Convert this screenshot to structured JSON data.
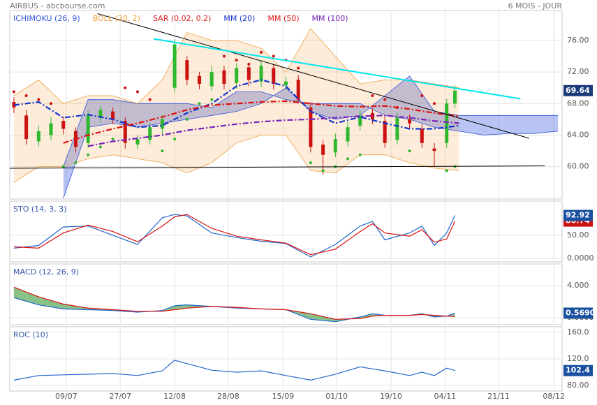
{
  "chart_data": [
    {
      "type": "candlestick",
      "title": "AIRBUS - abcbourse.com",
      "subtitle": "6 MOIS - JOUR",
      "x": [
        0,
        3,
        6,
        9,
        12,
        15,
        18,
        21,
        24,
        27,
        30,
        33,
        36,
        39,
        42,
        45,
        48,
        51,
        54,
        57,
        60,
        63,
        66,
        69,
        72,
        75,
        78,
        81,
        84,
        87,
        90,
        93,
        96,
        99,
        102,
        105,
        107
      ],
      "open": [
        68.2,
        66.5,
        63.2,
        64.0,
        65.8,
        64.5,
        63.0,
        66.2,
        67.0,
        65.8,
        62.8,
        63.4,
        64.8,
        70.0,
        73.5,
        71.5,
        70.2,
        72.2,
        70.6,
        72.6,
        70.8,
        72.5,
        70.3,
        71.0,
        67.5,
        62.8,
        61.8,
        63.2,
        65.2,
        66.8,
        65.8,
        63.4,
        66.0,
        64.8,
        62.3,
        63.0,
        68.0
      ],
      "high": [
        68.8,
        67.2,
        65.2,
        66.3,
        66.3,
        65.0,
        67.1,
        67.8,
        67.5,
        66.3,
        64.0,
        65.6,
        66.6,
        76.2,
        74.0,
        72.0,
        72.8,
        72.8,
        73.1,
        73.1,
        73.5,
        73.0,
        71.4,
        71.6,
        68.2,
        63.4,
        64.2,
        65.7,
        67.1,
        67.4,
        66.4,
        66.8,
        66.6,
        65.4,
        63.0,
        68.6,
        70.3
      ],
      "low": [
        66.8,
        62.8,
        62.6,
        63.4,
        64.1,
        61.8,
        62.4,
        65.6,
        65.4,
        62.3,
        62.2,
        62.8,
        64.1,
        69.4,
        70.3,
        69.8,
        69.6,
        69.8,
        69.9,
        70.2,
        70.1,
        69.8,
        69.7,
        68.0,
        61.8,
        59.0,
        61.2,
        62.6,
        64.6,
        65.4,
        62.4,
        62.8,
        64.9,
        62.4,
        60.0,
        62.4,
        67.4
      ],
      "close": [
        67.5,
        63.5,
        64.5,
        65.5,
        64.8,
        62.5,
        66.5,
        67.2,
        66.0,
        63.0,
        63.5,
        65.0,
        66.0,
        75.5,
        71.0,
        70.5,
        72.0,
        70.5,
        72.5,
        71.0,
        72.8,
        70.5,
        70.8,
        68.5,
        62.5,
        61.5,
        63.5,
        65.0,
        66.5,
        66.0,
        63.0,
        66.2,
        65.5,
        63.0,
        62.0,
        68.0,
        69.64
      ],
      "up_color": "#2eb82e",
      "down_color": "#cc1111",
      "last_label": "69.64",
      "xlim": [
        -1,
        133
      ],
      "ylim": [
        55.9,
        79.8
      ],
      "yticks": [
        {
          "value": 60,
          "label": "60.00"
        },
        {
          "value": 64,
          "label": "64.00"
        },
        {
          "value": 68,
          "label": "68.00"
        },
        {
          "value": 72,
          "label": "72.00"
        },
        {
          "value": 76,
          "label": "76.00"
        }
      ],
      "grid": true,
      "overlays": [
        {
          "name": "ICHIMOKU (26, 9)",
          "color": "#3355dd",
          "x": [
            0,
            6,
            12,
            18,
            24,
            30,
            36,
            42,
            48,
            54,
            60,
            66,
            72,
            78,
            84,
            90,
            96,
            102,
            108,
            114,
            120,
            126,
            132
          ],
          "span_a": [
            null,
            null,
            56,
            65,
            65.5,
            65,
            65.5,
            66,
            66.5,
            67,
            68,
            70,
            67,
            66,
            66.5,
            69,
            71.5,
            67,
            66.5,
            66.5,
            66.5,
            66.5,
            66.5
          ],
          "span_b": [
            null,
            null,
            60,
            68.5,
            68.5,
            68,
            68,
            68,
            67.5,
            69.5,
            69.5,
            68.5,
            68,
            68,
            68,
            66.5,
            66,
            65,
            64.5,
            64,
            64.2,
            64.2,
            64.5
          ]
        },
        {
          "name": "BOLL (20, 2)",
          "color": "#f0a040",
          "x": [
            0,
            6,
            12,
            18,
            24,
            30,
            36,
            42,
            48,
            54,
            60,
            66,
            72,
            78,
            84,
            90,
            96,
            102,
            108
          ],
          "upper": [
            69,
            71,
            68,
            69,
            69,
            68,
            71,
            77,
            76,
            76,
            75,
            72,
            77.5,
            74,
            70.5,
            71,
            71,
            70.5,
            70
          ],
          "lower": [
            58,
            60,
            60,
            61,
            61.5,
            61,
            60.5,
            59.2,
            60.5,
            63,
            64,
            64,
            59.5,
            59.2,
            61.5,
            61.5,
            60.5,
            59.8,
            59.5
          ]
        },
        {
          "name": "SAR (0.02, 0.2)",
          "color": "#dd2222",
          "x": [
            0,
            3,
            6,
            9,
            12,
            15,
            18,
            21,
            24,
            27,
            30,
            33,
            36,
            39,
            42,
            45,
            48,
            51,
            54,
            57,
            60,
            63,
            66,
            69,
            72,
            75,
            78,
            81,
            84,
            87,
            90,
            93,
            96,
            99,
            102,
            105,
            107
          ],
          "dots": [
            69.5,
            69,
            68.5,
            68,
            60,
            60.5,
            61.5,
            62.5,
            63.5,
            70,
            69.5,
            68.5,
            62,
            63.5,
            66,
            68,
            68.5,
            74,
            73.5,
            73,
            74.5,
            74,
            73.5,
            72.5,
            60.5,
            59.5,
            60,
            61,
            61.5,
            69,
            68.5,
            67.5,
            62,
            69,
            68,
            59.5,
            60
          ]
        },
        {
          "name": "MM (20)",
          "color": "#1133cc",
          "line_style": "dash-dot",
          "x": [
            0,
            6,
            12,
            18,
            24,
            30,
            36,
            42,
            48,
            54,
            60,
            66,
            72,
            78,
            84,
            90,
            96,
            102,
            108
          ],
          "values": [
            67.8,
            68.2,
            66.2,
            66.6,
            66.0,
            65.0,
            65.2,
            66.8,
            68.0,
            70.2,
            71.0,
            70.2,
            67.0,
            65.5,
            66.3,
            65.5,
            64.8,
            64.8,
            65.2
          ]
        },
        {
          "name": "MM (50)",
          "color": "#dd1111",
          "line_style": "dash-dot",
          "x": [
            0,
            6,
            12,
            18,
            24,
            30,
            36,
            42,
            48,
            54,
            60,
            66,
            72,
            78,
            84,
            90,
            96,
            102,
            108
          ],
          "values": [
            null,
            null,
            63.0,
            64.0,
            64.8,
            65.5,
            66.3,
            67.2,
            67.8,
            68.0,
            68.2,
            68.3,
            68.0,
            67.7,
            67.6,
            67.7,
            67.3,
            66.8,
            66.4
          ]
        },
        {
          "name": "MM (100)",
          "color": "#7722bb",
          "line_style": "dash-dot",
          "x": [
            0,
            6,
            12,
            18,
            24,
            30,
            36,
            42,
            48,
            54,
            60,
            66,
            72,
            78,
            84,
            90,
            96,
            102,
            108
          ],
          "values": [
            null,
            null,
            null,
            62.6,
            63.2,
            63.6,
            64.0,
            64.6,
            65.0,
            65.4,
            65.7,
            65.9,
            66.0,
            66.2,
            66.4,
            66.5,
            66.2,
            65.8,
            65.5
          ]
        }
      ],
      "trendlines": [
        {
          "color": "#000000",
          "points": [
            [
              20.3,
              79.4
            ],
            [
              125,
              63.6
            ]
          ]
        },
        {
          "color": "#00e5ee",
          "points": [
            [
              33.9,
              76.2
            ],
            [
              122.9,
              68.6
            ]
          ]
        },
        {
          "color": "#000000",
          "points": [
            [
              -1,
              59.8
            ],
            [
              128.8,
              60.1
            ]
          ]
        }
      ]
    },
    {
      "type": "line",
      "title": "STO (14, 3, 3)",
      "x": [
        0,
        6,
        12,
        18,
        24,
        30,
        36,
        39,
        42,
        48,
        54,
        60,
        66,
        72,
        78,
        84,
        87,
        90,
        96,
        99,
        102,
        105,
        107
      ],
      "series": [
        {
          "color": "#2266cc",
          "values": [
            22,
            28,
            68,
            70,
            50,
            30,
            88,
            95,
            92,
            55,
            45,
            37,
            32,
            3,
            30,
            70,
            80,
            40,
            55,
            70,
            28,
            55,
            92.92
          ],
          "last_label": "92.92"
        },
        {
          "color": "#dd1111",
          "values": [
            25,
            22,
            55,
            72,
            58,
            36,
            70,
            90,
            95,
            65,
            48,
            40,
            33,
            8,
            20,
            58,
            75,
            55,
            48,
            62,
            35,
            42,
            80.74
          ],
          "last_label": "80.74"
        }
      ],
      "xlim": [
        -1,
        133
      ],
      "ylim": [
        -7.6,
        124
      ],
      "yticks": [
        {
          "value": 0,
          "label": "0.0000"
        },
        {
          "value": 50,
          "label": "50.00"
        }
      ],
      "grid": true
    },
    {
      "type": "line",
      "title": "MACD (12, 26, 9)",
      "x": [
        0,
        6,
        12,
        18,
        24,
        30,
        36,
        39,
        42,
        48,
        54,
        60,
        66,
        72,
        78,
        84,
        87,
        90,
        96,
        99,
        102,
        105,
        107
      ],
      "series": [
        {
          "color": "#2266cc",
          "values": [
            2.5,
            1.6,
            1.1,
            1.0,
            0.9,
            0.7,
            0.9,
            1.5,
            1.6,
            1.4,
            1.2,
            1.1,
            1.0,
            -0.2,
            -0.5,
            0.1,
            0.5,
            0.3,
            0.3,
            0.5,
            0.1,
            0.2,
            0.569
          ],
          "last_label": "0.5690"
        },
        {
          "color": "#dd1111",
          "values": [
            3.8,
            2.6,
            1.7,
            1.2,
            1.0,
            0.8,
            0.8,
            1.0,
            1.2,
            1.4,
            1.3,
            1.1,
            1.0,
            0.5,
            -0.2,
            -0.1,
            0.2,
            0.3,
            0.3,
            0.4,
            0.3,
            0.2,
            0.15
          ]
        }
      ],
      "xlim": [
        -1,
        133
      ],
      "ylim": [
        -0.87,
        6.7
      ],
      "yticks": [
        {
          "value": 0,
          "label": "0.0000"
        },
        {
          "value": 4,
          "label": "4.000"
        }
      ],
      "grid": true
    },
    {
      "type": "line",
      "title": "ROC (10)",
      "x": [
        0,
        6,
        12,
        18,
        24,
        30,
        36,
        39,
        42,
        48,
        54,
        60,
        66,
        72,
        78,
        84,
        87,
        90,
        96,
        99,
        102,
        105,
        107
      ],
      "series": [
        {
          "color": "#2266cc",
          "values": [
            88,
            95,
            96,
            97,
            98,
            95,
            102,
            118,
            113,
            103,
            100,
            102,
            95,
            88,
            97,
            108,
            105,
            102,
            95,
            100,
            95,
            106,
            102.4
          ],
          "last_label": "102.4"
        }
      ],
      "xlim": [
        -1,
        133
      ],
      "ylim": [
        71.6,
        168.4
      ],
      "yticks": [
        {
          "value": 80,
          "label": "80.00"
        },
        {
          "value": 120,
          "label": "120.0"
        },
        {
          "value": 160,
          "label": "160.0"
        }
      ],
      "xticks": [
        {
          "value": 12.7,
          "label": "09/07"
        },
        {
          "value": 25.8,
          "label": "27/07"
        },
        {
          "value": 39,
          "label": "12/08"
        },
        {
          "value": 52,
          "label": "28/08"
        },
        {
          "value": 65.3,
          "label": "15/09"
        },
        {
          "value": 78.3,
          "label": "01/10"
        },
        {
          "value": 91.5,
          "label": "19/10"
        },
        {
          "value": 104.6,
          "label": "04/11"
        },
        {
          "value": 117.6,
          "label": "21/11"
        },
        {
          "value": 131,
          "label": "08/12"
        }
      ],
      "grid": true
    }
  ]
}
